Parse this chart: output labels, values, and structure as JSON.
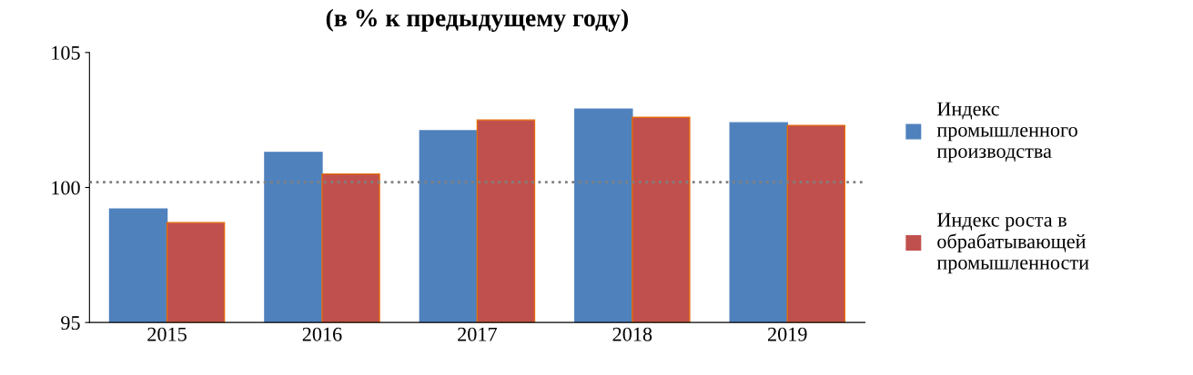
{
  "chart_data": {
    "type": "bar",
    "title": "(в % к предыдущему году)",
    "categories": [
      "2015",
      "2016",
      "2017",
      "2018",
      "2019"
    ],
    "series": [
      {
        "name": "Индекс\nпромышленного\nпроизводства",
        "color": "#4f81bd",
        "values": [
          99.2,
          101.3,
          102.1,
          102.9,
          102.4
        ]
      },
      {
        "name": "Индекс роста в\nобрабатывающей\nпромышленности",
        "color": "#c0504d",
        "values": [
          98.7,
          100.5,
          102.5,
          102.6,
          102.3
        ]
      }
    ],
    "ylim": [
      95,
      105
    ],
    "yticks": [
      95,
      100,
      105
    ],
    "grid": false,
    "legend": "right",
    "ref_lines": [
      {
        "axis": "y",
        "value": 100.2,
        "color": "#808080",
        "line_style": "dotted"
      }
    ]
  }
}
